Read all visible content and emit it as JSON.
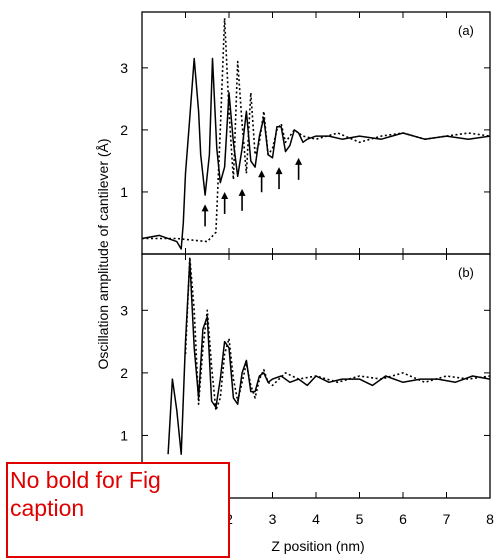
{
  "annotation": {
    "text": "No bold for Fig\ncaption",
    "color": "#e00000"
  },
  "shared_axes": {
    "xlabel": "Z position (nm)",
    "ylabel": "Oscillation amplitude of cantilever (Å)",
    "x_ticks": [
      2,
      3,
      4,
      5,
      6,
      7,
      8
    ],
    "x_tick_labels": [
      "2",
      "3",
      "4",
      "5",
      "6",
      "7",
      "8"
    ]
  },
  "chart_data": [
    {
      "type": "line",
      "panel": "(a)",
      "xlim": [
        0,
        8
      ],
      "ylim": [
        0,
        3.9
      ],
      "y_ticks": [
        1,
        2,
        3
      ],
      "series": [
        {
          "style": "solid",
          "color": "#000000",
          "x": [
            0.0,
            0.4,
            0.8,
            0.9,
            0.95,
            1.0,
            1.1,
            1.2,
            1.3,
            1.35,
            1.45,
            1.55,
            1.62,
            1.72,
            1.8,
            1.9,
            2.0,
            2.1,
            2.2,
            2.3,
            2.4,
            2.5,
            2.6,
            2.7,
            2.8,
            2.9,
            3.0,
            3.1,
            3.2,
            3.3,
            3.4,
            3.5,
            3.6,
            3.7,
            3.8,
            4.0,
            4.3,
            4.6,
            5.0,
            5.5,
            6.0,
            6.5,
            7.0,
            7.5,
            8.0
          ],
          "y": [
            0.25,
            0.3,
            0.2,
            0.08,
            0.5,
            1.3,
            2.2,
            3.15,
            2.3,
            1.6,
            0.95,
            1.6,
            3.15,
            1.7,
            1.15,
            1.4,
            2.6,
            1.8,
            1.25,
            1.7,
            2.3,
            1.5,
            1.4,
            1.9,
            2.2,
            1.6,
            1.55,
            2.05,
            2.05,
            1.65,
            1.75,
            2.0,
            1.95,
            1.8,
            1.85,
            1.9,
            1.9,
            1.85,
            1.9,
            1.85,
            1.95,
            1.85,
            1.9,
            1.85,
            1.9
          ]
        },
        {
          "style": "dotted",
          "color": "#000000",
          "x": [
            0.0,
            0.8,
            1.5,
            1.7,
            1.8,
            1.9,
            2.0,
            2.1,
            2.2,
            2.3,
            2.4,
            2.5,
            2.6,
            2.7,
            2.8,
            2.9,
            3.0,
            3.1,
            3.2,
            3.3,
            3.5,
            3.7,
            4.0,
            4.5,
            5.0,
            5.5,
            6.0,
            6.5,
            7.0,
            7.5,
            8.0
          ],
          "y": [
            0.25,
            0.25,
            0.2,
            0.35,
            2.0,
            3.8,
            2.3,
            1.2,
            3.1,
            2.1,
            1.3,
            2.6,
            1.6,
            1.8,
            2.3,
            1.6,
            1.7,
            2.0,
            2.1,
            1.8,
            2.0,
            1.9,
            1.85,
            1.95,
            1.8,
            1.9,
            1.95,
            1.85,
            1.9,
            1.95,
            1.9
          ]
        }
      ],
      "arrows": [
        {
          "x": 1.45,
          "y": 0.8
        },
        {
          "x": 1.9,
          "y": 1.0
        },
        {
          "x": 2.3,
          "y": 1.05
        },
        {
          "x": 2.75,
          "y": 1.35
        },
        {
          "x": 3.15,
          "y": 1.4
        },
        {
          "x": 3.6,
          "y": 1.55
        }
      ]
    },
    {
      "type": "line",
      "panel": "(b)",
      "xlim": [
        0,
        8
      ],
      "ylim": [
        0,
        3.9
      ],
      "y_ticks": [
        1,
        2,
        3
      ],
      "series": [
        {
          "style": "solid",
          "color": "#000000",
          "x": [
            0.6,
            0.7,
            0.8,
            0.9,
            1.0,
            1.1,
            1.2,
            1.3,
            1.4,
            1.5,
            1.6,
            1.7,
            1.8,
            1.9,
            2.0,
            2.1,
            2.2,
            2.3,
            2.4,
            2.5,
            2.6,
            2.7,
            2.8,
            2.9,
            3.0,
            3.2,
            3.4,
            3.6,
            3.8,
            4.0,
            4.3,
            4.6,
            5.0,
            5.3,
            5.6,
            6.0,
            6.4,
            6.8,
            7.2,
            7.6,
            8.0
          ],
          "y": [
            0.7,
            1.9,
            1.4,
            0.7,
            2.5,
            3.8,
            2.4,
            1.6,
            2.7,
            2.9,
            1.55,
            1.45,
            1.9,
            2.5,
            2.4,
            1.6,
            1.5,
            2.0,
            2.2,
            1.7,
            1.7,
            1.95,
            2.0,
            1.85,
            1.9,
            1.95,
            1.85,
            1.9,
            1.8,
            1.95,
            1.85,
            1.9,
            1.9,
            1.8,
            1.95,
            1.85,
            1.9,
            1.9,
            1.85,
            1.95,
            1.9
          ]
        },
        {
          "style": "dotted",
          "color": "#000000",
          "x": [
            1.0,
            1.1,
            1.2,
            1.3,
            1.4,
            1.5,
            1.6,
            1.7,
            1.8,
            1.9,
            2.0,
            2.1,
            2.2,
            2.3,
            2.4,
            2.5,
            2.6,
            2.7,
            2.8,
            2.9,
            3.0,
            3.3,
            3.6,
            4.0,
            4.5,
            5.0,
            5.5,
            6.0,
            6.5,
            7.0,
            7.5,
            8.0
          ],
          "y": [
            2.3,
            3.85,
            3.0,
            1.5,
            2.4,
            3.0,
            2.1,
            1.4,
            1.6,
            2.3,
            2.55,
            1.9,
            1.55,
            1.85,
            2.15,
            1.8,
            1.6,
            1.9,
            2.05,
            1.85,
            1.8,
            2.0,
            1.9,
            1.95,
            1.85,
            1.95,
            1.9,
            2.0,
            1.85,
            1.95,
            1.9,
            1.95
          ]
        }
      ]
    }
  ]
}
